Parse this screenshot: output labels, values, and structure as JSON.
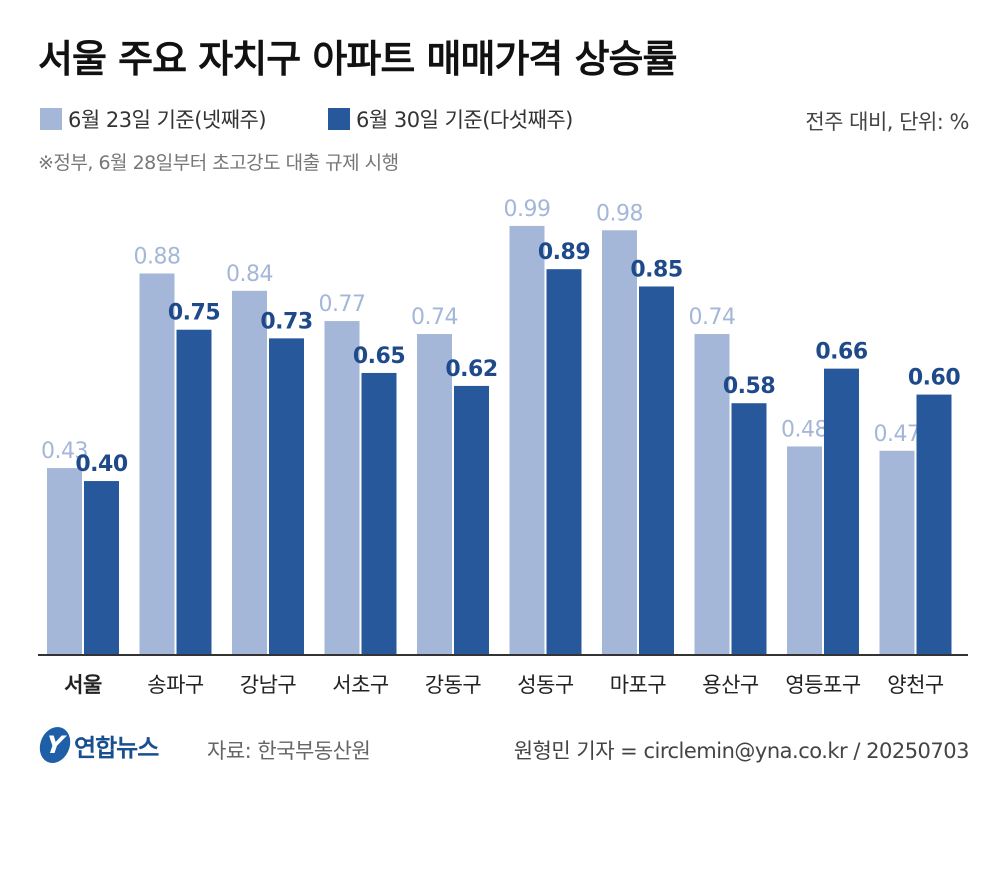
{
  "title": "서울 주요 자치구 아파트 매매가격 상승률",
  "unit": "전주 대비, 단위: %",
  "note": "※정부, 6월 28일부터 초고강도 대출 규제 시행",
  "colors": {
    "series1": "#a5b7d8",
    "series2": "#27589c",
    "label1": "#a5b7d8",
    "label2": "#1f4a8a",
    "axis": "#333333"
  },
  "chart_data": {
    "type": "bar",
    "categories": [
      "서울",
      "송파구",
      "강남구",
      "서초구",
      "강동구",
      "성동구",
      "마포구",
      "용산구",
      "영등포구",
      "양천구"
    ],
    "series": [
      {
        "name": "6월 23일 기준(넷째주)",
        "values": [
          0.43,
          0.88,
          0.84,
          0.77,
          0.74,
          0.99,
          0.98,
          0.74,
          0.48,
          0.47
        ],
        "labels": [
          "0.43",
          "0.88",
          "0.84",
          "0.77",
          "0.74",
          "0.99",
          "0.98",
          "0.74",
          "0.48",
          "0.47"
        ]
      },
      {
        "name": "6월 30일 기준(다섯째주)",
        "values": [
          0.4,
          0.75,
          0.73,
          0.65,
          0.62,
          0.89,
          0.85,
          0.58,
          0.66,
          0.6
        ],
        "labels": [
          "0.40",
          "0.75",
          "0.73",
          "0.65",
          "0.62",
          "0.89",
          "0.85",
          "0.58",
          "0.66",
          "0.60"
        ]
      }
    ],
    "ylim": [
      0,
      1.05
    ],
    "grid": false,
    "legend": "top-left"
  },
  "footer": {
    "logo": "연합뉴스",
    "logo_mark": "Y",
    "source": "자료: 한국부동산원",
    "credit": "원형민 기자 = circlemin@yna.co.kr / 20250703"
  }
}
